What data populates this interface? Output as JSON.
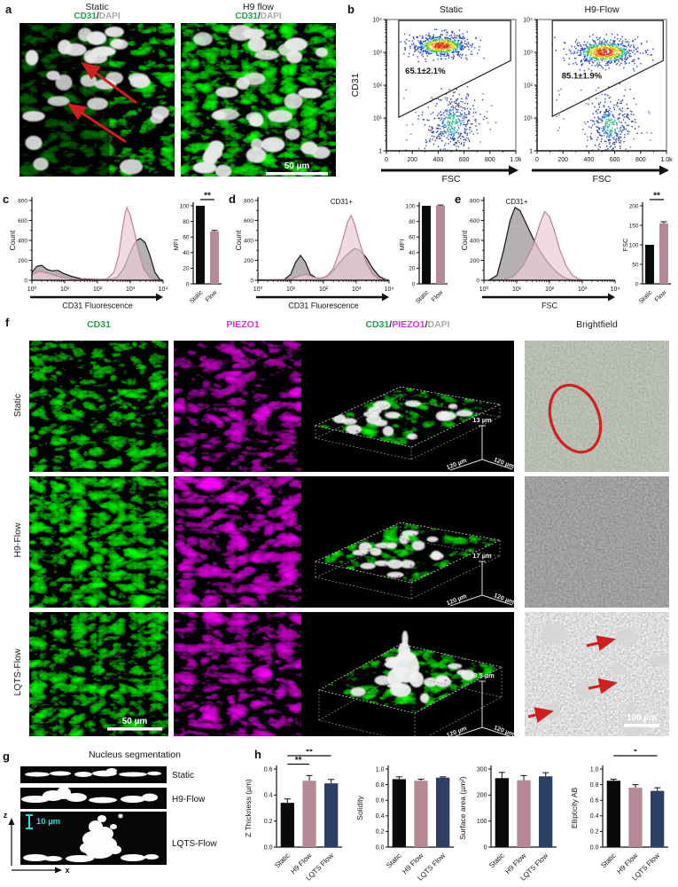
{
  "panel_a": {
    "label": "a",
    "images": [
      {
        "title": "Static",
        "stain_cd31": "CD31",
        "slash": "/",
        "stain_dapi": "DAPI"
      },
      {
        "title": "H9 flow",
        "stain_cd31": "CD31",
        "slash": "/",
        "stain_dapi": "DAPI",
        "scalebar": "50 µm"
      }
    ]
  },
  "panel_b": {
    "label": "b"
  },
  "panel_c": {
    "label": "c"
  },
  "panel_d": {
    "label": "d"
  },
  "panel_e": {
    "label": "e"
  },
  "panel_f": {
    "label": "f",
    "headers": {
      "h1": "CD31",
      "h2": "PIEZO1",
      "h3": [
        "CD31",
        "/",
        "PIEZO1",
        "/",
        "DAPI"
      ],
      "h4": "Brightfield"
    },
    "row_labels": [
      "Static",
      "H9-Flow",
      "LQTS-Flow"
    ],
    "depth_labels": [
      "13 µm",
      "17 µm",
      "43.5 µm"
    ],
    "base_label": "120 µm",
    "cd31_scalebar": "50 µm",
    "brightfield_scalebar": "100 µm"
  },
  "panel_g": {
    "label": "g",
    "title": "Nucleus segmentation",
    "row_labels": [
      "Static",
      "H9-Flow",
      "LQTS-Flow"
    ],
    "scale_label": "10 µm",
    "axis_z": "z",
    "axis_x": "x"
  },
  "panel_h": {
    "label": "h"
  },
  "chart_data": [
    {
      "id": "flow_static",
      "type": "scatter",
      "title": "Static",
      "xlabel": "FSC",
      "ylabel": "CD31",
      "xlim": [
        0,
        1000
      ],
      "ylog_lim": [
        0,
        4
      ],
      "xticks": [
        0,
        200,
        400,
        600,
        800,
        1000
      ],
      "xtick_labels": [
        "0",
        "200",
        "400",
        "600",
        "800",
        "1.0k"
      ],
      "ytick_labels": [
        "1",
        "10¹",
        "10²",
        "10³",
        "10⁴"
      ],
      "gate_pct": "65.1±2.1%",
      "pct_pos": {
        "x": 145,
        "ly": 2.35
      },
      "gate": [
        [
          95,
          3.97
        ],
        [
          960,
          3.97
        ],
        [
          960,
          2.75
        ],
        [
          95,
          1.02
        ]
      ],
      "clusters": [
        {
          "cx": 420,
          "cy": 3.22,
          "sx": 112,
          "sy": 0.17,
          "n": 720,
          "palette": "heat"
        },
        {
          "cx": 505,
          "cy": 0.85,
          "sx": 95,
          "sy": 0.45,
          "n": 400,
          "palette": "cool"
        }
      ],
      "seed": 5
    },
    {
      "id": "flow_h9",
      "type": "scatter",
      "title": "H9-Flow",
      "xlabel": "FSC",
      "ylabel": "",
      "xlim": [
        0,
        1000
      ],
      "ylog_lim": [
        0,
        4
      ],
      "xticks": [
        0,
        200,
        400,
        600,
        800,
        1000
      ],
      "xtick_labels": [
        "0",
        "200",
        "400",
        "600",
        "800",
        "1.0k"
      ],
      "ytick_labels": [
        "1",
        "10¹",
        "10²",
        "10³",
        "10⁴"
      ],
      "gate_pct": "85.1±1.9%",
      "pct_pos": {
        "x": 190,
        "ly": 2.2
      },
      "gate": [
        [
          118,
          3.97
        ],
        [
          975,
          3.97
        ],
        [
          975,
          2.75
        ],
        [
          118,
          1.05
        ]
      ],
      "clusters": [
        {
          "cx": 520,
          "cy": 3.02,
          "sx": 122,
          "sy": 0.2,
          "n": 760,
          "palette": "heat"
        },
        {
          "cx": 560,
          "cy": 0.8,
          "sx": 82,
          "sy": 0.42,
          "n": 330,
          "palette": "cool"
        }
      ],
      "seed": 9
    },
    {
      "id": "hist_c",
      "type": "histogram",
      "xlabel": "CD31 Fluorescence",
      "ylabel": "Count",
      "yticks": [
        0,
        200,
        400,
        600,
        800
      ],
      "ylim": [
        0,
        800
      ],
      "xtick_labels": [
        "10⁰",
        "10¹",
        "10²",
        "10³",
        "10⁴"
      ],
      "series": [
        {
          "name": "Static",
          "stroke": "#141414",
          "fill": "rgba(120,112,116,0.55)",
          "points": [
            [
              0,
              80
            ],
            [
              0.15,
              140
            ],
            [
              0.3,
              150
            ],
            [
              0.45,
              110
            ],
            [
              0.6,
              95
            ],
            [
              0.8,
              100
            ],
            [
              0.95,
              70
            ],
            [
              1.2,
              40
            ],
            [
              1.5,
              15
            ],
            [
              2.0,
              8
            ],
            [
              2.4,
              10
            ],
            [
              2.6,
              30
            ],
            [
              2.8,
              120
            ],
            [
              3.0,
              280
            ],
            [
              3.1,
              350
            ],
            [
              3.2,
              400
            ],
            [
              3.3,
              420
            ],
            [
              3.45,
              380
            ],
            [
              3.6,
              250
            ],
            [
              3.75,
              80
            ],
            [
              3.9,
              10
            ],
            [
              4,
              0
            ]
          ]
        },
        {
          "name": "Flow",
          "stroke": "#bd8497",
          "fill": "rgba(233,205,214,0.72)",
          "points": [
            [
              0,
              60
            ],
            [
              0.2,
              90
            ],
            [
              0.4,
              80
            ],
            [
              0.6,
              60
            ],
            [
              0.9,
              30
            ],
            [
              1.3,
              10
            ],
            [
              2.0,
              5
            ],
            [
              2.3,
              15
            ],
            [
              2.5,
              80
            ],
            [
              2.65,
              250
            ],
            [
              2.75,
              500
            ],
            [
              2.85,
              680
            ],
            [
              2.9,
              730
            ],
            [
              3.0,
              650
            ],
            [
              3.1,
              520
            ],
            [
              3.25,
              300
            ],
            [
              3.4,
              120
            ],
            [
              3.6,
              30
            ],
            [
              3.8,
              5
            ],
            [
              4,
              0
            ]
          ]
        }
      ]
    },
    {
      "id": "bar_c",
      "type": "bar",
      "ylabel": "MFI",
      "ylim": [
        0,
        100
      ],
      "yticks": [
        0,
        20,
        40,
        60,
        80,
        100
      ],
      "categories": [
        "Static",
        "Flow"
      ],
      "values": [
        100,
        67
      ],
      "errors": [
        0,
        1.5
      ],
      "colors": [
        "#0a0a0a",
        "#b68994"
      ],
      "sig": [
        {
          "a": 0,
          "b": 1,
          "label": "**"
        }
      ]
    },
    {
      "id": "hist_d",
      "type": "histogram",
      "xlabel": "CD31 Fluorescence",
      "ylabel": "Count",
      "yticks": [
        0,
        200,
        400,
        600,
        800
      ],
      "ylim": [
        0,
        800
      ],
      "xtick_labels": [
        "10⁰",
        "10¹",
        "10²",
        "10³",
        "10⁴"
      ],
      "annotation": {
        "text": "CD31+",
        "lx": 2.55
      },
      "series": [
        {
          "name": "Static",
          "stroke": "#141414",
          "fill": "rgba(120,112,116,0.55)",
          "points": [
            [
              0,
              4
            ],
            [
              0.8,
              5
            ],
            [
              1.0,
              60
            ],
            [
              1.15,
              180
            ],
            [
              1.3,
              250
            ],
            [
              1.45,
              180
            ],
            [
              1.6,
              60
            ],
            [
              1.8,
              20
            ],
            [
              2.0,
              25
            ],
            [
              2.2,
              60
            ],
            [
              2.4,
              140
            ],
            [
              2.6,
              220
            ],
            [
              2.8,
              280
            ],
            [
              2.95,
              320
            ],
            [
              3.1,
              300
            ],
            [
              3.3,
              230
            ],
            [
              3.5,
              120
            ],
            [
              3.7,
              40
            ],
            [
              3.9,
              5
            ],
            [
              4,
              0
            ]
          ]
        },
        {
          "name": "Flow",
          "stroke": "#bd8497",
          "fill": "rgba(233,205,214,0.72)",
          "points": [
            [
              0,
              2
            ],
            [
              1.0,
              10
            ],
            [
              1.3,
              50
            ],
            [
              1.5,
              60
            ],
            [
              1.7,
              30
            ],
            [
              1.9,
              20
            ],
            [
              2.1,
              40
            ],
            [
              2.3,
              120
            ],
            [
              2.5,
              300
            ],
            [
              2.65,
              480
            ],
            [
              2.75,
              600
            ],
            [
              2.85,
              650
            ],
            [
              2.95,
              560
            ],
            [
              3.1,
              380
            ],
            [
              3.3,
              180
            ],
            [
              3.5,
              60
            ],
            [
              3.7,
              10
            ],
            [
              4,
              0
            ]
          ]
        }
      ]
    },
    {
      "id": "bar_d",
      "type": "bar",
      "ylabel": "MFI",
      "ylim": [
        0,
        100
      ],
      "yticks": [
        0,
        20,
        40,
        60,
        80,
        100
      ],
      "categories": [
        "Static",
        "Flow"
      ],
      "values": [
        100,
        100
      ],
      "errors": [
        0,
        1
      ],
      "colors": [
        "#0a0a0a",
        "#b68994"
      ],
      "sig": []
    },
    {
      "id": "hist_e",
      "type": "histogram",
      "xlabel": "FSC",
      "ylabel": "Count",
      "yticks": [
        0,
        200,
        400,
        600,
        800
      ],
      "ylim": [
        0,
        800
      ],
      "xtick_labels": [
        "10⁰",
        "10¹",
        "10²",
        "10³",
        "10⁴"
      ],
      "annotation": {
        "text": "CD31+",
        "lx": 1.0
      },
      "series": [
        {
          "name": "Static",
          "stroke": "#141414",
          "fill": "rgba(120,112,116,0.55)",
          "points": [
            [
              0.15,
              0
            ],
            [
              0.4,
              50
            ],
            [
              0.6,
              300
            ],
            [
              0.8,
              600
            ],
            [
              0.95,
              730
            ],
            [
              1.1,
              700
            ],
            [
              1.3,
              560
            ],
            [
              1.5,
              420
            ],
            [
              1.7,
              300
            ],
            [
              1.9,
              200
            ],
            [
              2.1,
              120
            ],
            [
              2.3,
              60
            ],
            [
              2.5,
              20
            ],
            [
              2.7,
              5
            ],
            [
              3.0,
              0
            ],
            [
              4,
              0
            ]
          ]
        },
        {
          "name": "Flow",
          "stroke": "#bd8497",
          "fill": "rgba(233,205,214,0.72)",
          "points": [
            [
              0.6,
              0
            ],
            [
              0.9,
              40
            ],
            [
              1.2,
              150
            ],
            [
              1.5,
              350
            ],
            [
              1.7,
              560
            ],
            [
              1.85,
              690
            ],
            [
              2.0,
              640
            ],
            [
              2.15,
              500
            ],
            [
              2.3,
              320
            ],
            [
              2.5,
              150
            ],
            [
              2.7,
              50
            ],
            [
              2.9,
              10
            ],
            [
              3.1,
              0
            ],
            [
              4,
              0
            ]
          ]
        }
      ]
    },
    {
      "id": "bar_e",
      "type": "bar",
      "ylabel": "FSC",
      "ylim": [
        0,
        200
      ],
      "yticks": [
        0,
        50,
        100,
        150,
        200
      ],
      "categories": [
        "Static",
        "Flow"
      ],
      "values": [
        100,
        155
      ],
      "errors": [
        0,
        4
      ],
      "colors": [
        "#0a0a0a",
        "#b68994"
      ],
      "sig": [
        {
          "a": 0,
          "b": 1,
          "label": "**"
        }
      ]
    },
    {
      "id": "bar_h1",
      "type": "bar",
      "ylabel": "Z Thickness (µm)",
      "ylim": [
        0,
        0.6
      ],
      "yticks": [
        "0.0",
        "0.2",
        "0.4",
        "0.6"
      ],
      "categories": [
        "Static",
        "H9 Flow",
        "LQTS Flow"
      ],
      "values": [
        0.34,
        0.51,
        0.49
      ],
      "errors": [
        0.03,
        0.04,
        0.03
      ],
      "colors": [
        "#0a0a0a",
        "#b68994",
        "#2c3e62"
      ],
      "sig": [
        {
          "a": 0,
          "b": 2,
          "label": "**"
        },
        {
          "a": 0,
          "b": 1,
          "label": "**"
        }
      ]
    },
    {
      "id": "bar_h2",
      "type": "bar",
      "ylabel": "Solidity",
      "ylim": [
        0,
        1.0
      ],
      "yticks": [
        "0.0",
        "0.2",
        "0.4",
        "0.6",
        "0.8",
        "1.0"
      ],
      "categories": [
        "Static",
        "H9 Flow",
        "LQTS Flow"
      ],
      "values": [
        0.87,
        0.85,
        0.89
      ],
      "errors": [
        0.03,
        0.02,
        0.01
      ],
      "colors": [
        "#0a0a0a",
        "#b68994",
        "#2c3e62"
      ],
      "sig": []
    },
    {
      "id": "bar_h3",
      "type": "bar",
      "ylabel": "Surface area (µm²)",
      "ylim": [
        0,
        300
      ],
      "yticks": [
        0,
        100,
        200,
        300
      ],
      "categories": [
        "Static",
        "H9 Flow",
        "LQTS Flow"
      ],
      "values": [
        265,
        257,
        272
      ],
      "errors": [
        22,
        18,
        14
      ],
      "colors": [
        "#0a0a0a",
        "#b68994",
        "#2c3e62"
      ],
      "sig": []
    },
    {
      "id": "bar_h4",
      "type": "bar",
      "ylabel": "Ellipticity AB",
      "ylim": [
        0,
        1.0
      ],
      "yticks": [
        "0.0",
        "0.2",
        "0.4",
        "0.6",
        "0.8",
        "1.0"
      ],
      "categories": [
        "Static",
        "H9 Flow",
        "LQTS Flow"
      ],
      "values": [
        0.85,
        0.76,
        0.72
      ],
      "errors": [
        0.02,
        0.04,
        0.04
      ],
      "colors": [
        "#0a0a0a",
        "#b68994",
        "#2c3e62"
      ],
      "sig": [
        {
          "a": 0,
          "b": 2,
          "label": "*"
        }
      ]
    }
  ]
}
